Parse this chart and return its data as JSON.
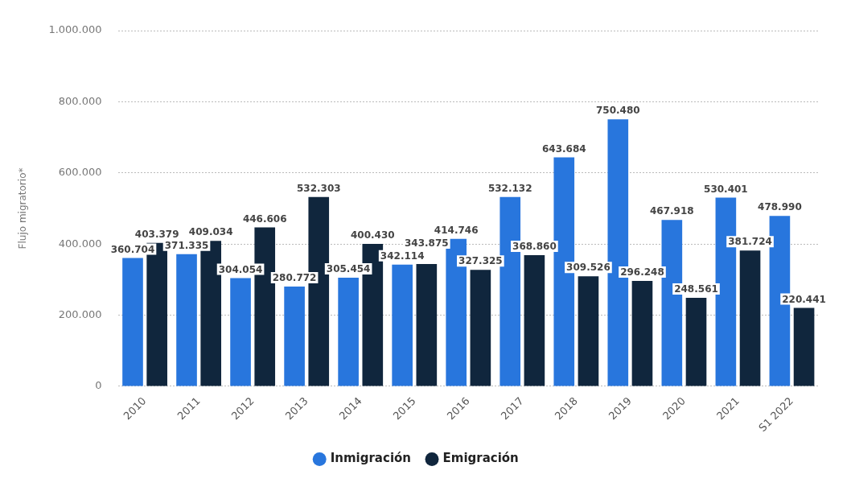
{
  "chart_data": {
    "type": "bar",
    "ylabel": "Flujo migratorio*",
    "categories": [
      "2010",
      "2011",
      "2012",
      "2013",
      "2014",
      "2015",
      "2016",
      "2017",
      "2018",
      "2019",
      "2020",
      "2021",
      "S1 2022"
    ],
    "series": [
      {
        "name": "Inmigración",
        "color": "#2876dd",
        "values": [
          360704,
          371335,
          304054,
          280772,
          305454,
          342114,
          414746,
          532132,
          643684,
          750480,
          467918,
          530401,
          478990
        ],
        "value_labels": [
          "360.704",
          "371.335",
          "304.054",
          "280.772",
          "305.454",
          "342.114",
          "414.746",
          "532.132",
          "643.684",
          "750.480",
          "467.918",
          "530.401",
          "478.990"
        ]
      },
      {
        "name": "Emigración",
        "color": "#10263d",
        "values": [
          403379,
          409034,
          446606,
          532303,
          400430,
          343875,
          327325,
          368860,
          309526,
          296248,
          248561,
          381724,
          220441
        ],
        "value_labels": [
          "403.379",
          "409.034",
          "446.606",
          "532.303",
          "400.430",
          "343.875",
          "327.325",
          "368.860",
          "309.526",
          "296.248",
          "248.561",
          "381.724",
          "220.441"
        ]
      }
    ],
    "ylim": [
      0,
      1000000
    ],
    "yticks": [
      {
        "value": 0,
        "label": "0"
      },
      {
        "value": 200000,
        "label": "200.000"
      },
      {
        "value": 400000,
        "label": "400.000"
      },
      {
        "value": 600000,
        "label": "600.000"
      },
      {
        "value": 800000,
        "label": "800.000"
      },
      {
        "value": 1000000,
        "label": "1.000.000"
      }
    ],
    "grid": "y",
    "legend": "bottom"
  }
}
